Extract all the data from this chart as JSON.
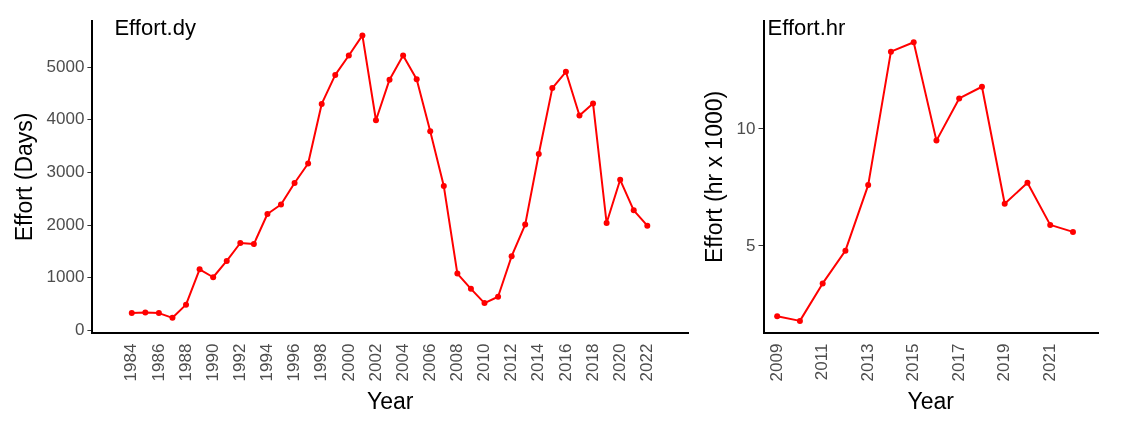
{
  "chart_data": [
    {
      "type": "line",
      "annotations": [
        "Effort.dy"
      ],
      "xlabel": "Year",
      "ylabel": "Effort (Days)",
      "x": [
        1984,
        1985,
        1986,
        1987,
        1988,
        1989,
        1990,
        1991,
        1992,
        1993,
        1994,
        1995,
        1996,
        1997,
        1998,
        1999,
        2000,
        2001,
        2002,
        2003,
        2004,
        2005,
        2006,
        2007,
        2008,
        2009,
        2010,
        2011,
        2012,
        2013,
        2014,
        2015,
        2016,
        2017,
        2018,
        2019,
        2020,
        2021,
        2022
      ],
      "series": [
        {
          "color": "#ff0000",
          "values": [
            330,
            340,
            330,
            240,
            490,
            1160,
            1010,
            1320,
            1660,
            1640,
            2210,
            2390,
            2800,
            3170,
            4300,
            4850,
            5220,
            5600,
            3990,
            4760,
            5220,
            4770,
            3780,
            2740,
            1080,
            790,
            520,
            640,
            1410,
            2010,
            3350,
            4600,
            4910,
            4080,
            4310,
            2040,
            2860,
            2280,
            1990
          ]
        }
      ],
      "xlim": [
        1981.1,
        2025
      ],
      "xticks": [
        1984,
        1986,
        1988,
        1990,
        1992,
        1994,
        1996,
        1998,
        2000,
        2002,
        2004,
        2006,
        2008,
        2010,
        2012,
        2014,
        2016,
        2018,
        2020,
        2022
      ],
      "ylim": [
        -40,
        5870
      ],
      "yticks": [
        0,
        1000,
        2000,
        3000,
        4000,
        5000
      ],
      "grid": false,
      "legend": false,
      "marker": "circle",
      "line_style": "solid"
    },
    {
      "type": "line",
      "annotations": [
        "Effort.hr"
      ],
      "xlabel": "Year",
      "ylabel": "Effort (hr x 1000)",
      "x": [
        2009,
        2010,
        2011,
        2012,
        2013,
        2014,
        2015,
        2016,
        2017,
        2018,
        2019,
        2020,
        2021,
        2022
      ],
      "series": [
        {
          "color": "#ff0000",
          "values": [
            2.0,
            1.8,
            3.4,
            4.8,
            7.6,
            13.3,
            13.7,
            9.5,
            11.3,
            11.8,
            6.8,
            7.7,
            5.9,
            5.6
          ]
        }
      ],
      "xlim": [
        2008.4,
        2023.1
      ],
      "xticks": [
        2009,
        2011,
        2013,
        2015,
        2017,
        2019,
        2021
      ],
      "ylim": [
        1.3,
        14.6
      ],
      "yticks": [
        5,
        10
      ],
      "grid": false,
      "legend": false,
      "marker": "circle",
      "line_style": "solid"
    }
  ]
}
